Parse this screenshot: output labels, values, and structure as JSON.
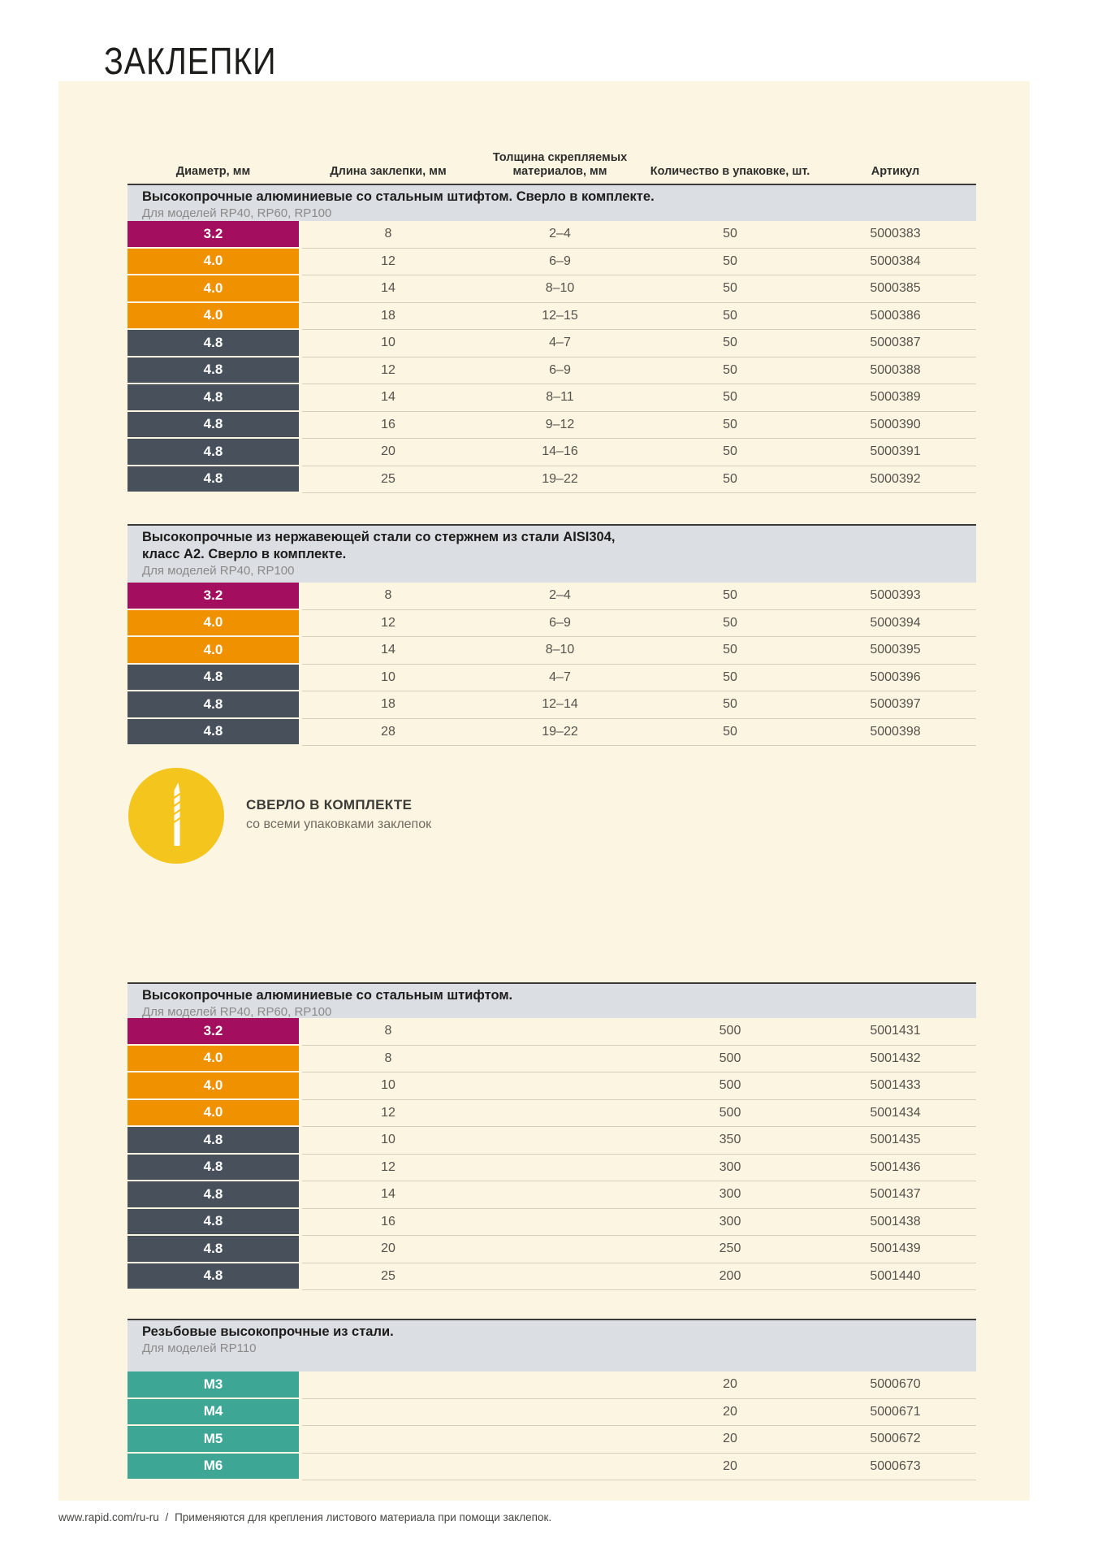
{
  "title": "ЗАКЛЕПКИ",
  "columns": {
    "diameter": "Диаметр, мм",
    "length": "Длина заклепки, мм",
    "thickness": "Толщина скрепляемых\nматериалов, мм",
    "qty": "Количество в упаковке, шт.",
    "sku": "Артикул"
  },
  "colors": {
    "magenta": "#a40e5e",
    "orange": "#f09100",
    "dark": "#47505b",
    "teal": "#3ea695",
    "cream": "#fcf5e2",
    "band": "#dbdee2",
    "badge_yellow": "#f3c51d"
  },
  "sections": [
    {
      "title_lines": [
        "Высокопрочные алюминиевые со стальным штифтом. Сверло в комплекте."
      ],
      "subtitle": "Для моделей RP40, RP60, RP100",
      "rows": [
        {
          "diameter": "3.2",
          "color": "magenta",
          "length": "8",
          "thickness": "2–4",
          "qty": "50",
          "sku": "5000383"
        },
        {
          "diameter": "4.0",
          "color": "orange",
          "length": "12",
          "thickness": "6–9",
          "qty": "50",
          "sku": "5000384"
        },
        {
          "diameter": "4.0",
          "color": "orange",
          "length": "14",
          "thickness": "8–10",
          "qty": "50",
          "sku": "5000385"
        },
        {
          "diameter": "4.0",
          "color": "orange",
          "length": "18",
          "thickness": "12–15",
          "qty": "50",
          "sku": "5000386"
        },
        {
          "diameter": "4.8",
          "color": "dark",
          "length": "10",
          "thickness": "4–7",
          "qty": "50",
          "sku": "5000387"
        },
        {
          "diameter": "4.8",
          "color": "dark",
          "length": "12",
          "thickness": "6–9",
          "qty": "50",
          "sku": "5000388"
        },
        {
          "diameter": "4.8",
          "color": "dark",
          "length": "14",
          "thickness": "8–11",
          "qty": "50",
          "sku": "5000389"
        },
        {
          "diameter": "4.8",
          "color": "dark",
          "length": "16",
          "thickness": "9–12",
          "qty": "50",
          "sku": "5000390"
        },
        {
          "diameter": "4.8",
          "color": "dark",
          "length": "20",
          "thickness": "14–16",
          "qty": "50",
          "sku": "5000391"
        },
        {
          "diameter": "4.8",
          "color": "dark",
          "length": "25",
          "thickness": "19–22",
          "qty": "50",
          "sku": "5000392"
        }
      ]
    },
    {
      "title_lines": [
        "Высокопрочные из нержавеющей стали со стержнем из стали AISI304,",
        "класс А2. Сверло в комплекте."
      ],
      "subtitle": "Для моделей RP40, RP100",
      "rows": [
        {
          "diameter": "3.2",
          "color": "magenta",
          "length": "8",
          "thickness": "2–4",
          "qty": "50",
          "sku": "5000393"
        },
        {
          "diameter": "4.0",
          "color": "orange",
          "length": "12",
          "thickness": "6–9",
          "qty": "50",
          "sku": "5000394"
        },
        {
          "diameter": "4.0",
          "color": "orange",
          "length": "14",
          "thickness": "8–10",
          "qty": "50",
          "sku": "5000395"
        },
        {
          "diameter": "4.8",
          "color": "dark",
          "length": "10",
          "thickness": "4–7",
          "qty": "50",
          "sku": "5000396"
        },
        {
          "diameter": "4.8",
          "color": "dark",
          "length": "18",
          "thickness": "12–14",
          "qty": "50",
          "sku": "5000397"
        },
        {
          "diameter": "4.8",
          "color": "dark",
          "length": "28",
          "thickness": "19–22",
          "qty": "50",
          "sku": "5000398"
        }
      ]
    },
    {
      "title_lines": [
        "Высокопрочные алюминиевые со стальным штифтом."
      ],
      "subtitle": "Для моделей RP40, RP60, RP100",
      "rows": [
        {
          "diameter": "3.2",
          "color": "magenta",
          "length": "8",
          "thickness": "",
          "qty": "500",
          "sku": "5001431"
        },
        {
          "diameter": "4.0",
          "color": "orange",
          "length": "8",
          "thickness": "",
          "qty": "500",
          "sku": "5001432"
        },
        {
          "diameter": "4.0",
          "color": "orange",
          "length": "10",
          "thickness": "",
          "qty": "500",
          "sku": "5001433"
        },
        {
          "diameter": "4.0",
          "color": "orange",
          "length": "12",
          "thickness": "",
          "qty": "500",
          "sku": "5001434"
        },
        {
          "diameter": "4.8",
          "color": "dark",
          "length": "10",
          "thickness": "",
          "qty": "350",
          "sku": "5001435"
        },
        {
          "diameter": "4.8",
          "color": "dark",
          "length": "12",
          "thickness": "",
          "qty": "300",
          "sku": "5001436"
        },
        {
          "diameter": "4.8",
          "color": "dark",
          "length": "14",
          "thickness": "",
          "qty": "300",
          "sku": "5001437"
        },
        {
          "diameter": "4.8",
          "color": "dark",
          "length": "16",
          "thickness": "",
          "qty": "300",
          "sku": "5001438"
        },
        {
          "diameter": "4.8",
          "color": "dark",
          "length": "20",
          "thickness": "",
          "qty": "250",
          "sku": "5001439"
        },
        {
          "diameter": "4.8",
          "color": "dark",
          "length": "25",
          "thickness": "",
          "qty": "200",
          "sku": "5001440"
        }
      ]
    },
    {
      "title_lines": [
        "Резьбовые высокопрочные из стали."
      ],
      "subtitle": "Для моделей RP110",
      "rows": [
        {
          "diameter": "M3",
          "color": "teal",
          "length": "",
          "thickness": "",
          "qty": "20",
          "sku": "5000670"
        },
        {
          "diameter": "M4",
          "color": "teal",
          "length": "",
          "thickness": "",
          "qty": "20",
          "sku": "5000671"
        },
        {
          "diameter": "M5",
          "color": "teal",
          "length": "",
          "thickness": "",
          "qty": "20",
          "sku": "5000672"
        },
        {
          "diameter": "M6",
          "color": "teal",
          "length": "",
          "thickness": "",
          "qty": "20",
          "sku": "5000673"
        }
      ]
    }
  ],
  "badge": {
    "icon": "drill-bit-icon",
    "title": "СВЕРЛО В КОМПЛЕКТЕ",
    "subtitle": "со всеми упаковками заклепок"
  },
  "footer": {
    "url": "www.rapid.com/ru-ru",
    "separator": "/",
    "note": "Применяются для крепления листового материала при помощи заклепок."
  }
}
